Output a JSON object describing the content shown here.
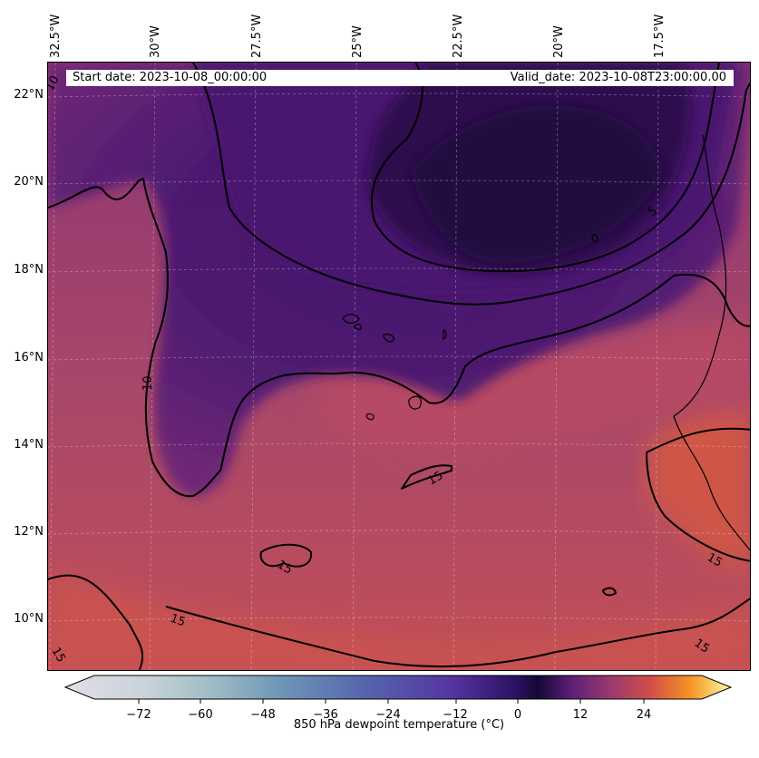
{
  "header": {
    "start_date": "Start date: 2023-10-08_00:00:00",
    "valid_date": "Valid_date: 2023-10-08T23:00:00.00"
  },
  "axes": {
    "longitude_ticks": [
      "32.5°W",
      "30°W",
      "27.5°W",
      "25°W",
      "22.5°W",
      "20°W",
      "17.5°W"
    ],
    "latitude_ticks": [
      "22°N",
      "20°N",
      "18°N",
      "16°N",
      "14°N",
      "12°N",
      "10°N"
    ]
  },
  "contours": {
    "labels": [
      "10",
      "0",
      "5",
      "10",
      "15",
      "15",
      "15",
      "15",
      "15",
      "15"
    ]
  },
  "colorbar": {
    "label": "850 hPa dewpoint temperature (°C)",
    "ticks": [
      "−72",
      "−60",
      "−48",
      "−36",
      "−24",
      "−12",
      "0",
      "12",
      "24"
    ],
    "range": [
      -80,
      32
    ],
    "colors": {
      "cold": "#e3dde6",
      "blue": "#5d79b3",
      "violet": "#3b1a6a",
      "zero": "#1b0a3a",
      "purple": "#6b2677",
      "magenta": "#a83f6e",
      "red": "#d9533d",
      "orange": "#f4a11a",
      "yellow": "#fcfca4"
    }
  }
}
